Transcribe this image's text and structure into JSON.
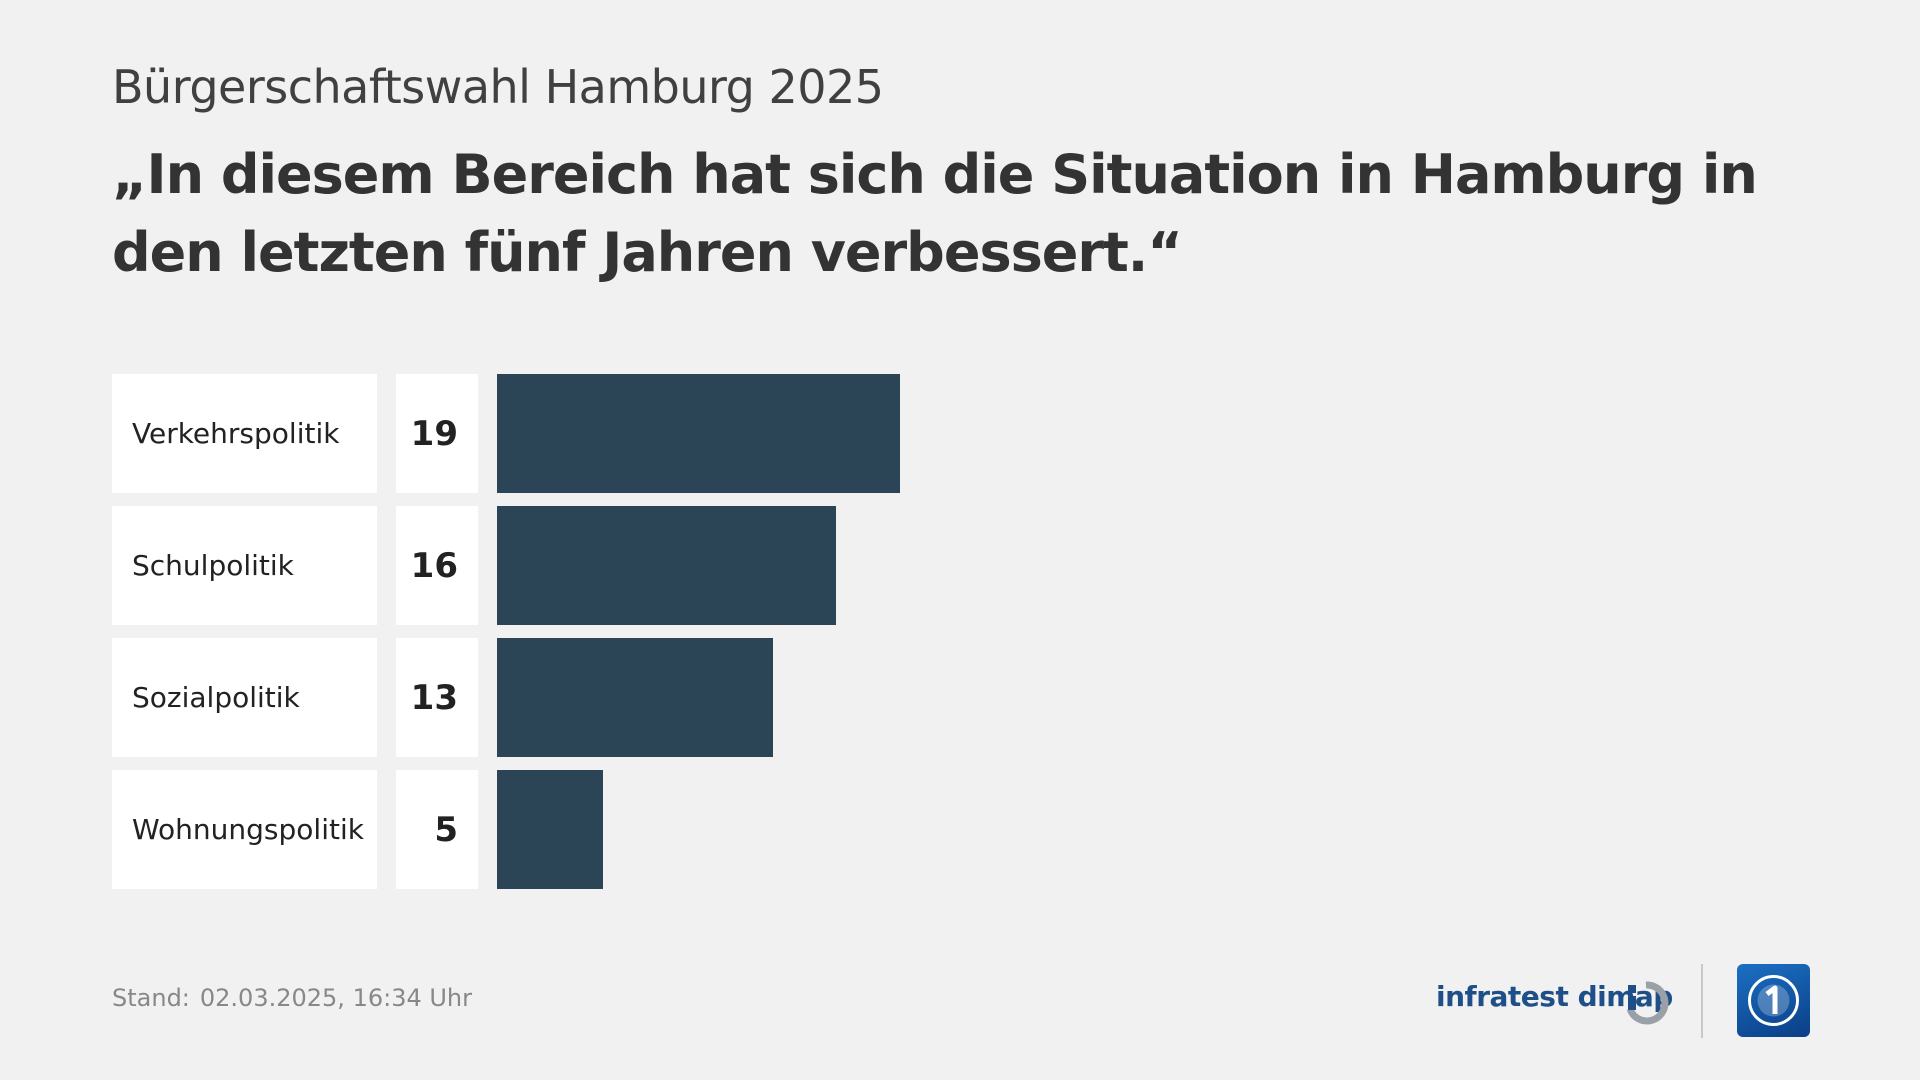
{
  "header": {
    "subtitle": "Bürgerschaftswahl Hamburg 2025",
    "title": "„In diesem Bereich hat sich die Situation in Hamburg in den letzten fünf Jahren verbessert.“"
  },
  "chart_data": {
    "type": "bar",
    "orientation": "horizontal",
    "title": "„In diesem Bereich hat sich die Situation in Hamburg in den letzten fünf Jahren verbessert.“",
    "categories": [
      "Verkehrspolitik",
      "Schulpolitik",
      "Sozialpolitik",
      "Wohnungspolitik"
    ],
    "values": [
      19,
      16,
      13,
      5
    ],
    "value_labels": [
      "19",
      "16",
      "13",
      "5"
    ],
    "bar_color": "#2b4556",
    "grid": false
  },
  "footer": {
    "stand_label": "Stand:",
    "stand_value": "02.03.2025, 16:34 Uhr",
    "brand": "infratest dimap"
  },
  "icons": {
    "brand_logo": "infratest-dimap-logo-icon",
    "broadcaster_logo": "ard-one-logo-icon"
  }
}
